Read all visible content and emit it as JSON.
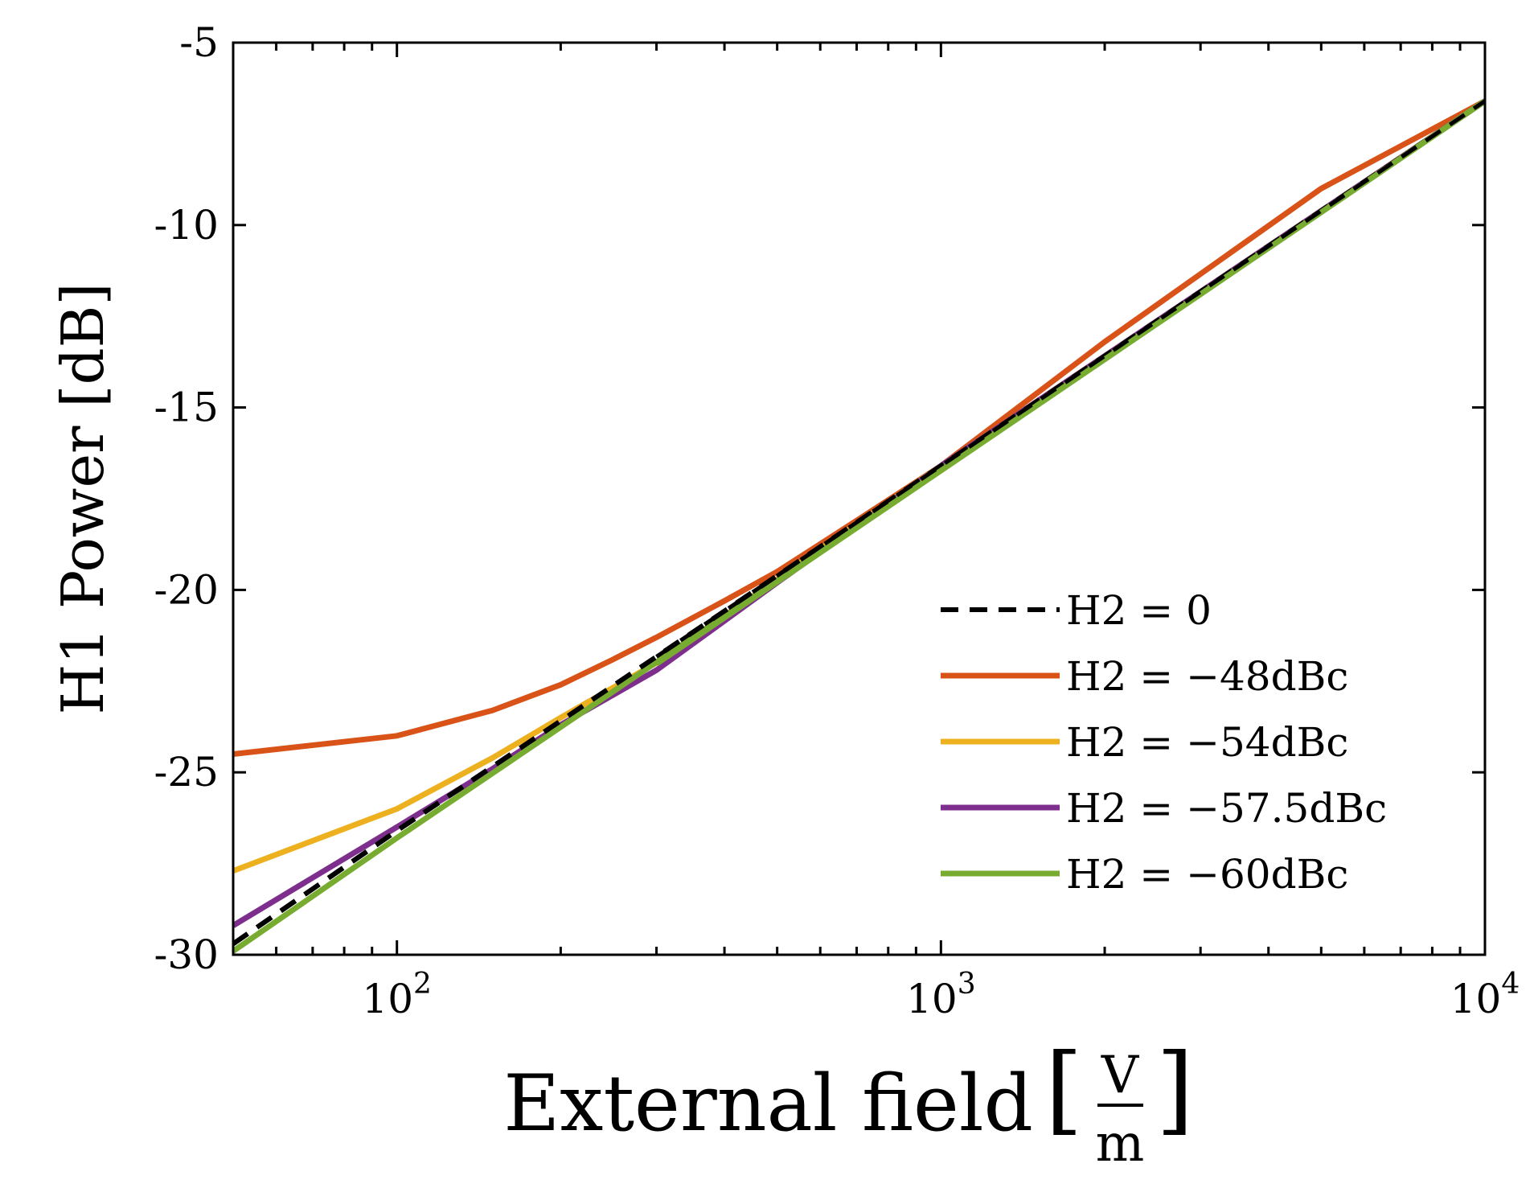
{
  "chart_data": {
    "type": "line",
    "xscale": "log",
    "xlim": [
      50,
      10000
    ],
    "ylim": [
      -30,
      -5
    ],
    "yticks": [
      -30,
      -25,
      -20,
      -15,
      -10,
      -5
    ],
    "xticks": [
      {
        "value": 100,
        "base": "10",
        "exp": "2"
      },
      {
        "value": 1000,
        "base": "10",
        "exp": "3"
      },
      {
        "value": 10000,
        "base": "10",
        "exp": "4"
      }
    ],
    "ylabel": "H1 Power [dB]",
    "xlabel": {
      "text": "External field",
      "unit_numerator": "V",
      "unit_denominator": "m"
    },
    "legend_position": "bottom-right",
    "series": [
      {
        "name": "H2 = 0",
        "color": "#000000",
        "dashed": true,
        "x": [
          50,
          100,
          10000
        ],
        "y": [
          -29.7,
          -26.6,
          -6.6
        ]
      },
      {
        "name": "H2 = −48dBc",
        "color": "#D95319",
        "dashed": false,
        "x": [
          50,
          100,
          150,
          200,
          250,
          300,
          400,
          500,
          700,
          1000,
          2000,
          5000,
          10000
        ],
        "y": [
          -24.5,
          -24.0,
          -23.3,
          -22.6,
          -21.9,
          -21.3,
          -20.3,
          -19.5,
          -18.1,
          -16.6,
          -13.2,
          -9.0,
          -6.6
        ]
      },
      {
        "name": "H2 = −54dBc",
        "color": "#EDB120",
        "dashed": false,
        "x": [
          50,
          100,
          150,
          200,
          300,
          500,
          1000,
          10000
        ],
        "y": [
          -27.7,
          -26.0,
          -24.6,
          -23.5,
          -22.0,
          -19.7,
          -16.6,
          -6.6
        ]
      },
      {
        "name": "H2 = −57.5dBc",
        "color": "#7E2F8E",
        "dashed": false,
        "x": [
          50,
          100,
          150,
          200,
          300,
          500,
          1000,
          10000
        ],
        "y": [
          -29.2,
          -26.5,
          -24.9,
          -23.7,
          -22.2,
          -19.8,
          -16.6,
          -6.6
        ]
      },
      {
        "name": "H2 = −60dBc",
        "color": "#77AC30",
        "dashed": false,
        "x": [
          50,
          100,
          10000
        ],
        "y": [
          -29.9,
          -26.8,
          -6.6
        ]
      }
    ]
  }
}
